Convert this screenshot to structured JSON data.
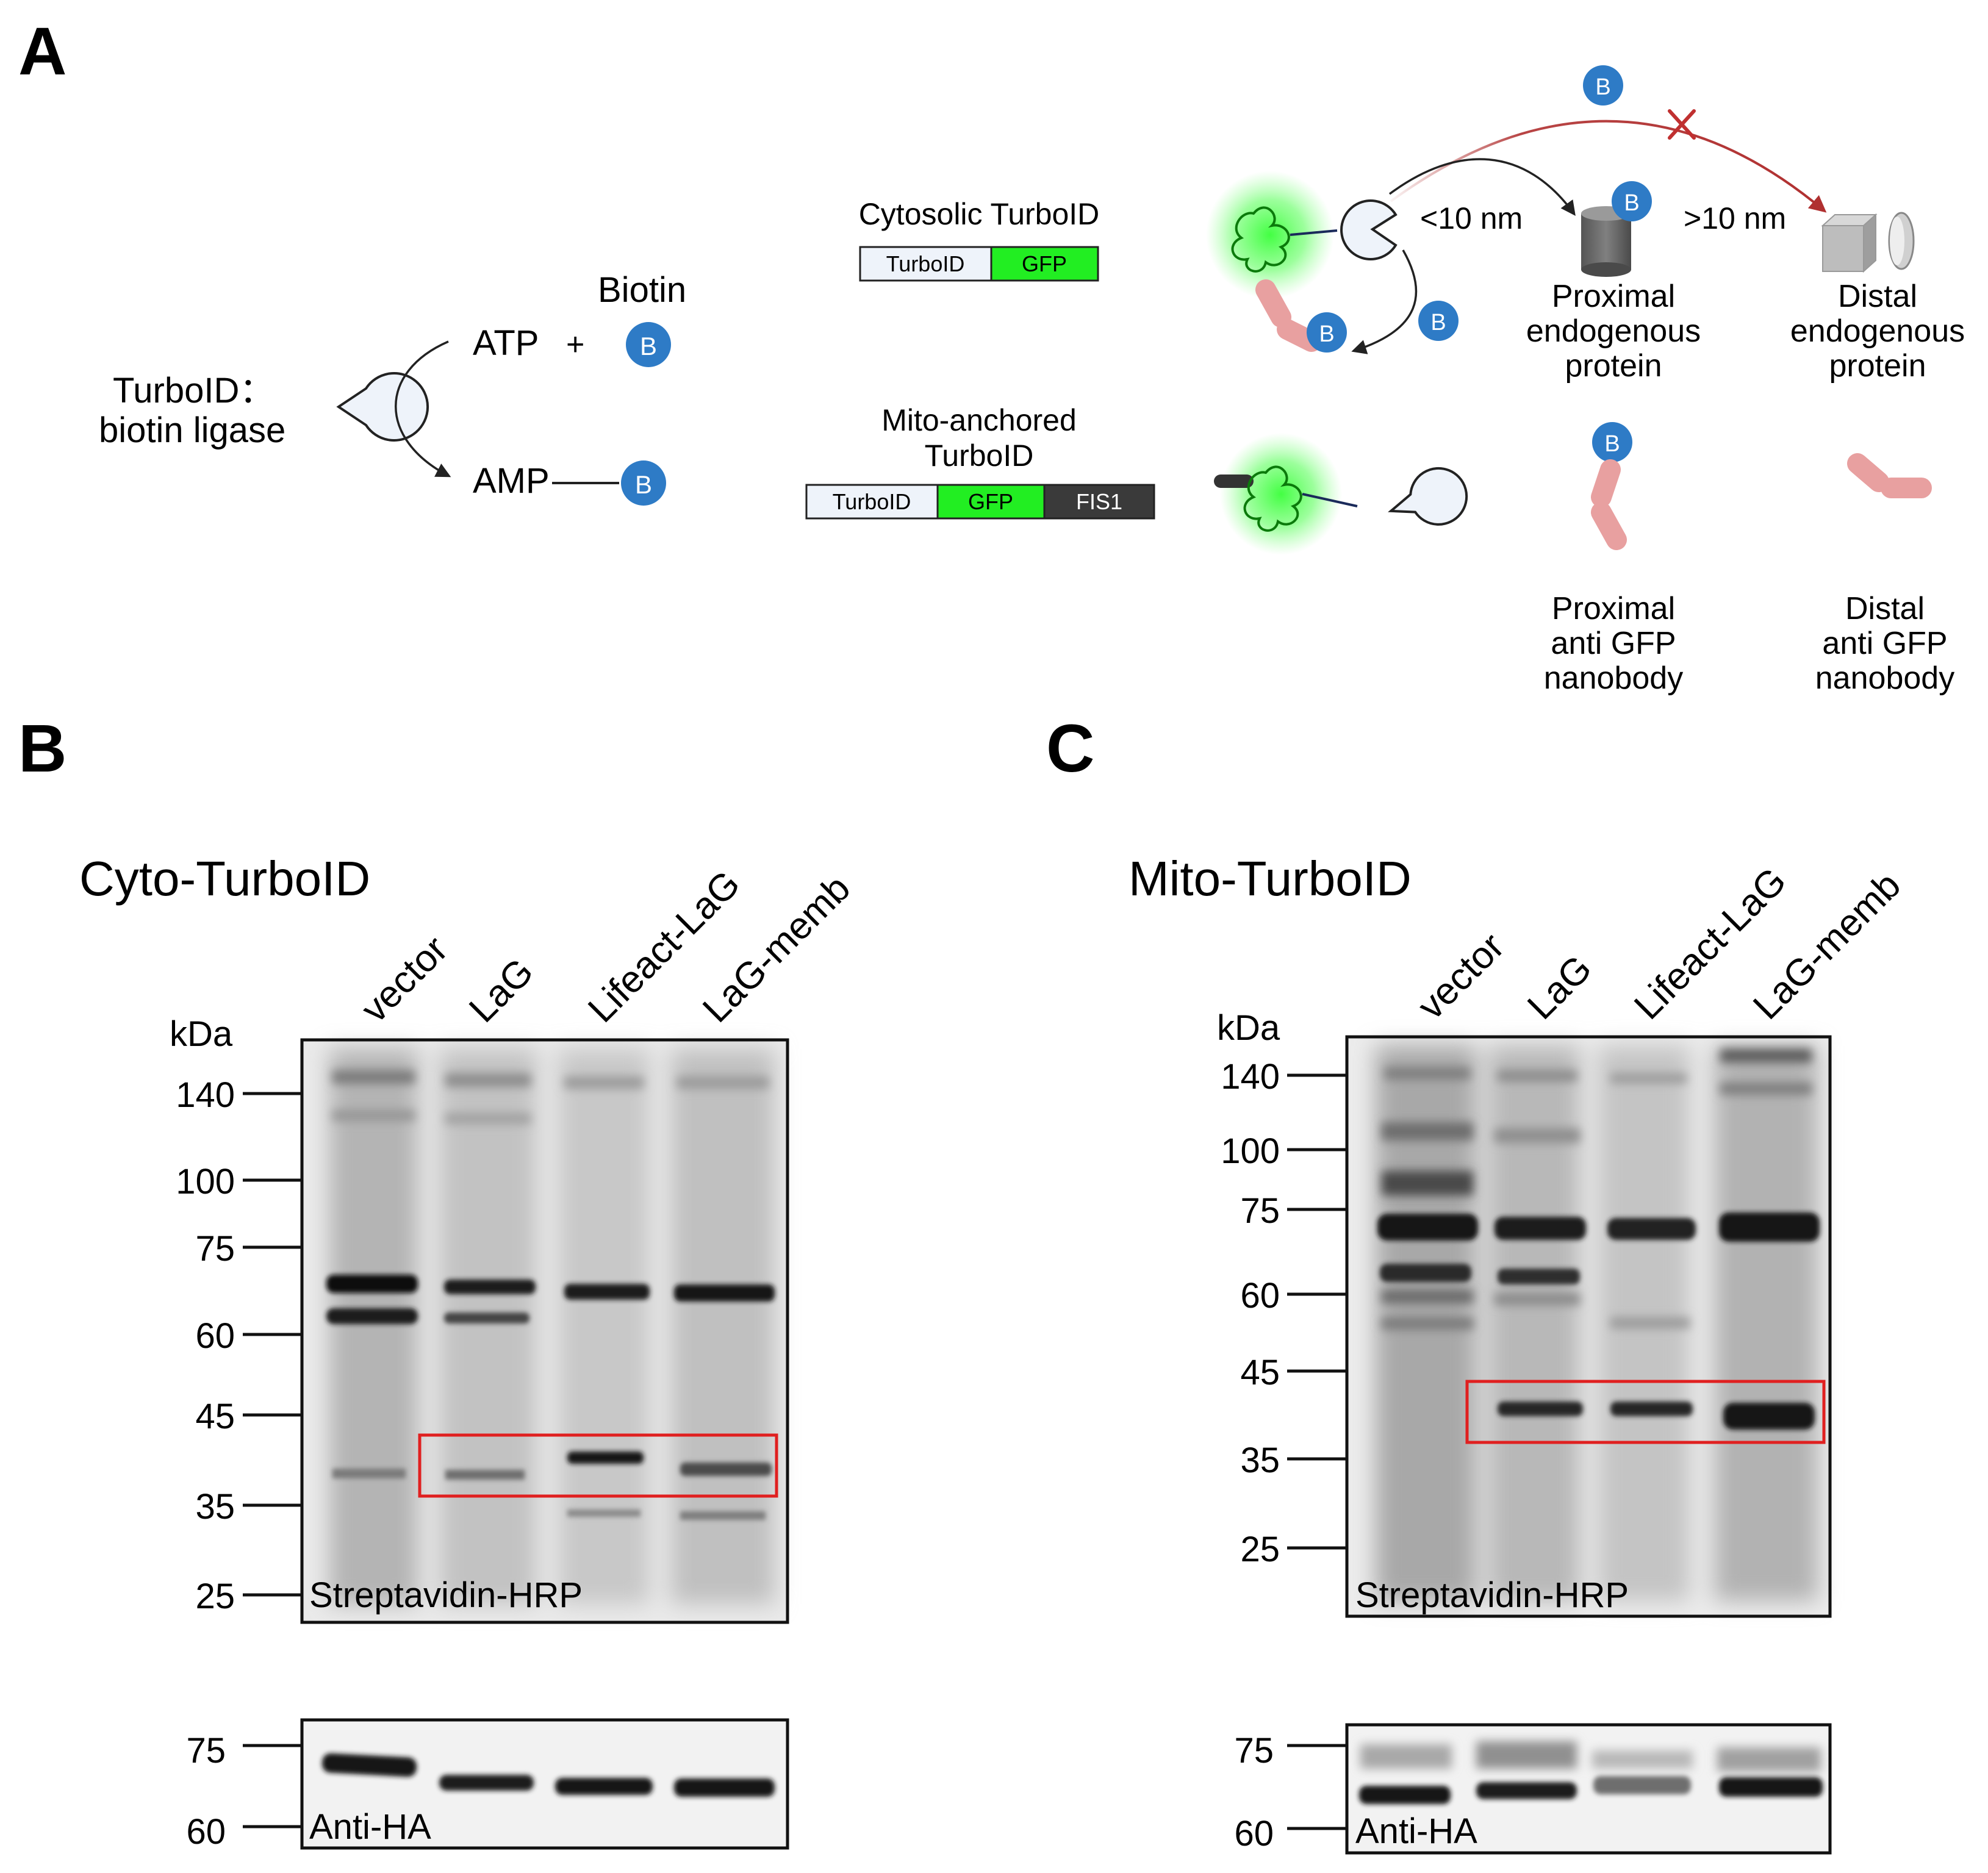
{
  "panel_a": {
    "label": "A",
    "turboid_label_1": "TurboID：",
    "turboid_label_2": "biotin ligase",
    "biotin_label": "Biotin",
    "atp_label": "ATP",
    "plus_sign": "+",
    "amp_label": "AMP",
    "biotin_mark": "B",
    "cytosolic_title": "Cytosolic TurboID",
    "mito_title_1": "Mito-anchored",
    "mito_title_2": "TurboID",
    "construct_turboid": "TurboID",
    "construct_gfp": "GFP",
    "construct_fis1": "FIS1",
    "near_distance": "<10 nm",
    "far_distance": ">10 nm",
    "proximal_protein": [
      "Proximal",
      "endogenous",
      "protein"
    ],
    "distal_protein": [
      "Distal",
      "endogenous",
      "protein"
    ],
    "proximal_nanobody": [
      "Proximal",
      "anti GFP",
      "nanobody"
    ],
    "distal_nanobody": [
      "Distal",
      "anti GFP",
      "nanobody"
    ],
    "colors": {
      "biotin": "#2e7bc6",
      "gfp": "#22ee22",
      "fis1": "#3a3a3a",
      "inhibited_arrow": "#b03030",
      "nanobody": "#e8a0a0"
    }
  },
  "panel_b": {
    "label": "B",
    "title": "Cyto-TurboID",
    "lanes": [
      "vector",
      "LaG",
      "Lifeact-LaG",
      "LaG-memb"
    ],
    "kda_label": "kDa",
    "markers": [
      "140",
      "100",
      "75",
      "60",
      "45",
      "35",
      "25"
    ],
    "blot_label": "Streptavidin-HRP",
    "loading_markers": [
      "75",
      "60"
    ],
    "loading_label": "Anti-HA"
  },
  "panel_c": {
    "label": "C",
    "title": "Mito-TurboID",
    "lanes": [
      "vector",
      "LaG",
      "Lifeact-LaG",
      "LaG-memb"
    ],
    "kda_label": "kDa",
    "markers": [
      "140",
      "100",
      "75",
      "60",
      "45",
      "35",
      "25"
    ],
    "blot_label": "Streptavidin-HRP",
    "loading_markers": [
      "75",
      "60"
    ],
    "loading_label": "Anti-HA"
  },
  "colors": {
    "highlight_box": "#e02020"
  }
}
